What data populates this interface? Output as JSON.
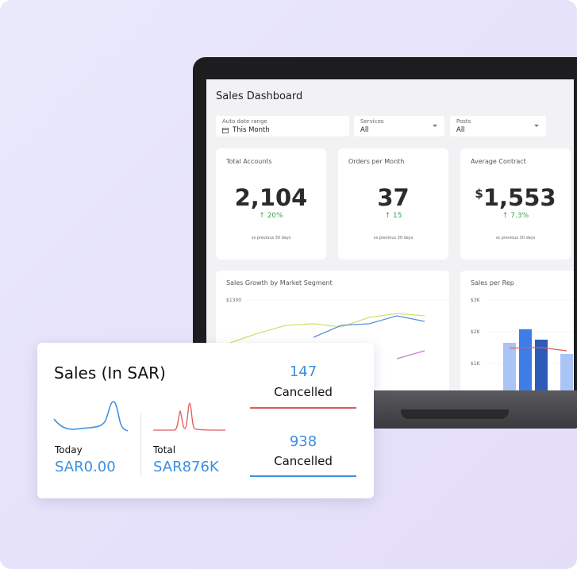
{
  "dashboard": {
    "title": "Sales Dashboard",
    "filters": [
      {
        "label": "Auto date range",
        "value": "This Month"
      },
      {
        "label": "Services",
        "value": "All"
      },
      {
        "label": "Posts",
        "value": "All"
      }
    ],
    "kpis": [
      {
        "label": "Total Accounts",
        "value": "2,104",
        "change": "20%",
        "note": "vs previous 30 days"
      },
      {
        "label": "Orders per Month",
        "value": "37",
        "change": "15",
        "note": "vs previous 30 days"
      },
      {
        "label": "Average Contract",
        "currency": "$",
        "value": "1,553",
        "change": "7.3%",
        "note": "vs previous 30 days"
      }
    ],
    "charts": [
      {
        "type": "line",
        "title": "Sales Growth by Market Segment",
        "categories": [
          null,
          null,
          null,
          null,
          null,
          null,
          null,
          null
        ],
        "ylim": [
          700,
          1300
        ],
        "yticks": [
          {
            "value": 1300,
            "label": "$1300"
          }
        ],
        "series": [
          {
            "color": "#d4e06a",
            "values": [
              1030,
              1090,
              1140,
              1150,
              1130,
              1190,
              1215,
              1200
            ]
          },
          {
            "color": "#5b8fe0",
            "values": [
              null,
              null,
              null,
              1065,
              1140,
              1150,
              1200,
              1165
            ]
          },
          {
            "color": "#c77fd6",
            "values": [
              null,
              null,
              null,
              null,
              null,
              null,
              930,
              980
            ]
          }
        ]
      },
      {
        "type": "bar",
        "title": "Sales per Rep",
        "categories": [
          null,
          null,
          null,
          null
        ],
        "ylim": [
          0,
          3000
        ],
        "yticks": [
          {
            "value": 3000,
            "label": "$3K"
          },
          {
            "value": 2000,
            "label": "$2K"
          },
          {
            "value": 1000,
            "label": "$1K"
          }
        ],
        "values": [
          1650,
          2080,
          1750,
          1300
        ],
        "colors": [
          "#a9c4f5",
          "#3f7de6",
          "#2d5cb8",
          "#a9c4f5"
        ],
        "line": {
          "color": "#e05a5a",
          "values": [
            1480,
            1500,
            1500,
            1400
          ]
        }
      }
    ]
  },
  "sales_card": {
    "title": "Sales (In SAR)",
    "today": {
      "label": "Today",
      "value": "SAR0.00"
    },
    "total": {
      "label": "Total",
      "value": "SAR876K"
    },
    "cancelled": [
      {
        "value": "147",
        "label": "Cancelled"
      },
      {
        "value": "938",
        "label": "Cancelled"
      }
    ]
  }
}
